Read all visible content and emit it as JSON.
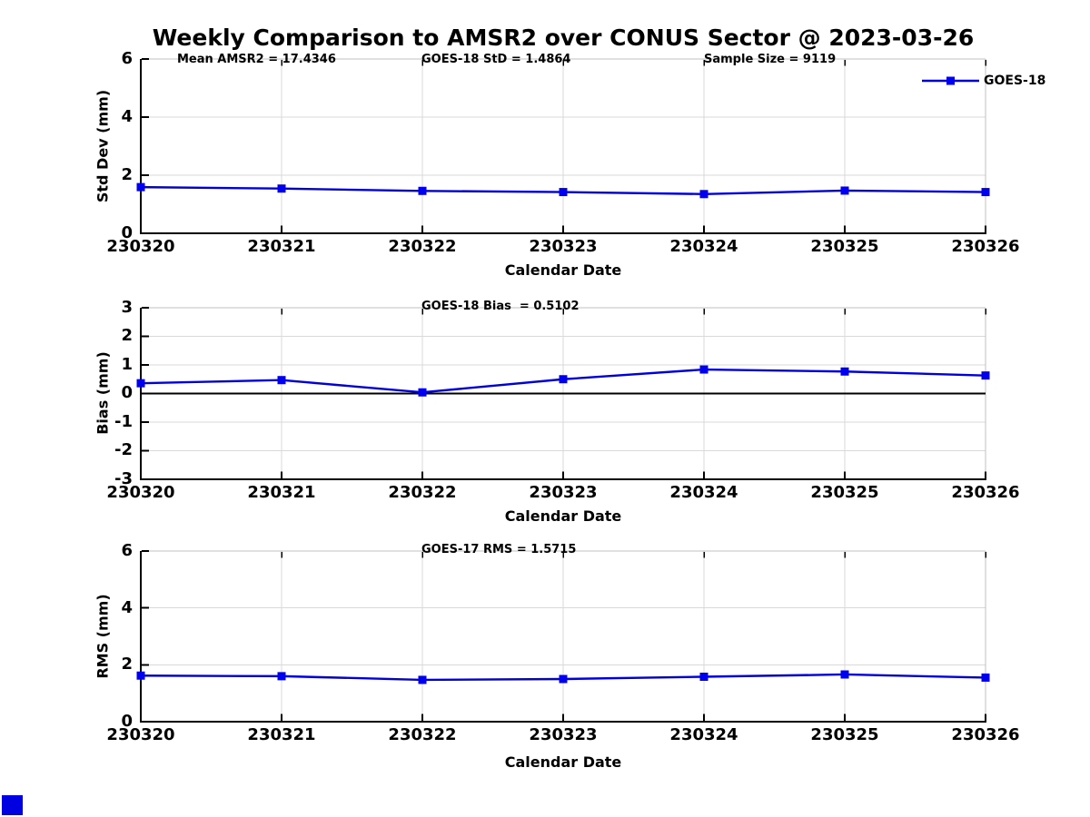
{
  "title": "Weekly Comparison to AMSR2 over CONUS Sector @ 2023-03-26",
  "legend": {
    "label": "GOES-18",
    "position": "northeast",
    "box": false
  },
  "colors": {
    "line": "#0000dd",
    "marker": "#0000ee",
    "grid": "#d9d9d9",
    "spine_light": "#c0c0c0",
    "spine_dark": "#000000",
    "text": "#000000",
    "background": "#ffffff",
    "corner_mark": "#0000e0"
  },
  "chart_data": [
    {
      "type": "line",
      "panel": "std-dev",
      "annotations": [
        "Mean AMSR2 = 17.4346",
        "GOES-18 StD = 1.4864",
        "Sample Size = 9119"
      ],
      "x": [
        "230320",
        "230321",
        "230322",
        "230323",
        "230324",
        "230325",
        "230326"
      ],
      "series": [
        {
          "name": "GOES-18",
          "values": [
            1.59,
            1.54,
            1.46,
            1.42,
            1.35,
            1.47,
            1.42
          ]
        }
      ],
      "xlabel": "Calendar Date",
      "ylabel": "Std Dev (mm)",
      "ylim": [
        0,
        6
      ],
      "yticks": [
        6,
        4,
        2,
        0
      ],
      "grid": true,
      "zero_line": false
    },
    {
      "type": "line",
      "panel": "bias",
      "annotations": [
        "GOES-18 Bias  = 0.5102"
      ],
      "x": [
        "230320",
        "230321",
        "230322",
        "230323",
        "230324",
        "230325",
        "230326"
      ],
      "series": [
        {
          "name": "GOES-18",
          "values": [
            0.36,
            0.47,
            0.04,
            0.5,
            0.84,
            0.77,
            0.63
          ]
        }
      ],
      "xlabel": "Calendar Date",
      "ylabel": "Bias (mm)",
      "ylim": [
        -3,
        3
      ],
      "yticks": [
        3,
        2,
        1,
        0,
        -1,
        -2,
        -3
      ],
      "grid": true,
      "zero_line": true
    },
    {
      "type": "line",
      "panel": "rms",
      "annotations": [
        "GOES-17 RMS = 1.5715"
      ],
      "x": [
        "230320",
        "230321",
        "230322",
        "230323",
        "230324",
        "230325",
        "230326"
      ],
      "series": [
        {
          "name": "GOES-18",
          "values": [
            1.62,
            1.6,
            1.47,
            1.5,
            1.58,
            1.66,
            1.55
          ]
        }
      ],
      "xlabel": "Calendar Date",
      "ylabel": "RMS (mm)",
      "ylim": [
        0,
        6
      ],
      "yticks": [
        6,
        4,
        2,
        0
      ],
      "grid": true,
      "zero_line": false
    }
  ]
}
